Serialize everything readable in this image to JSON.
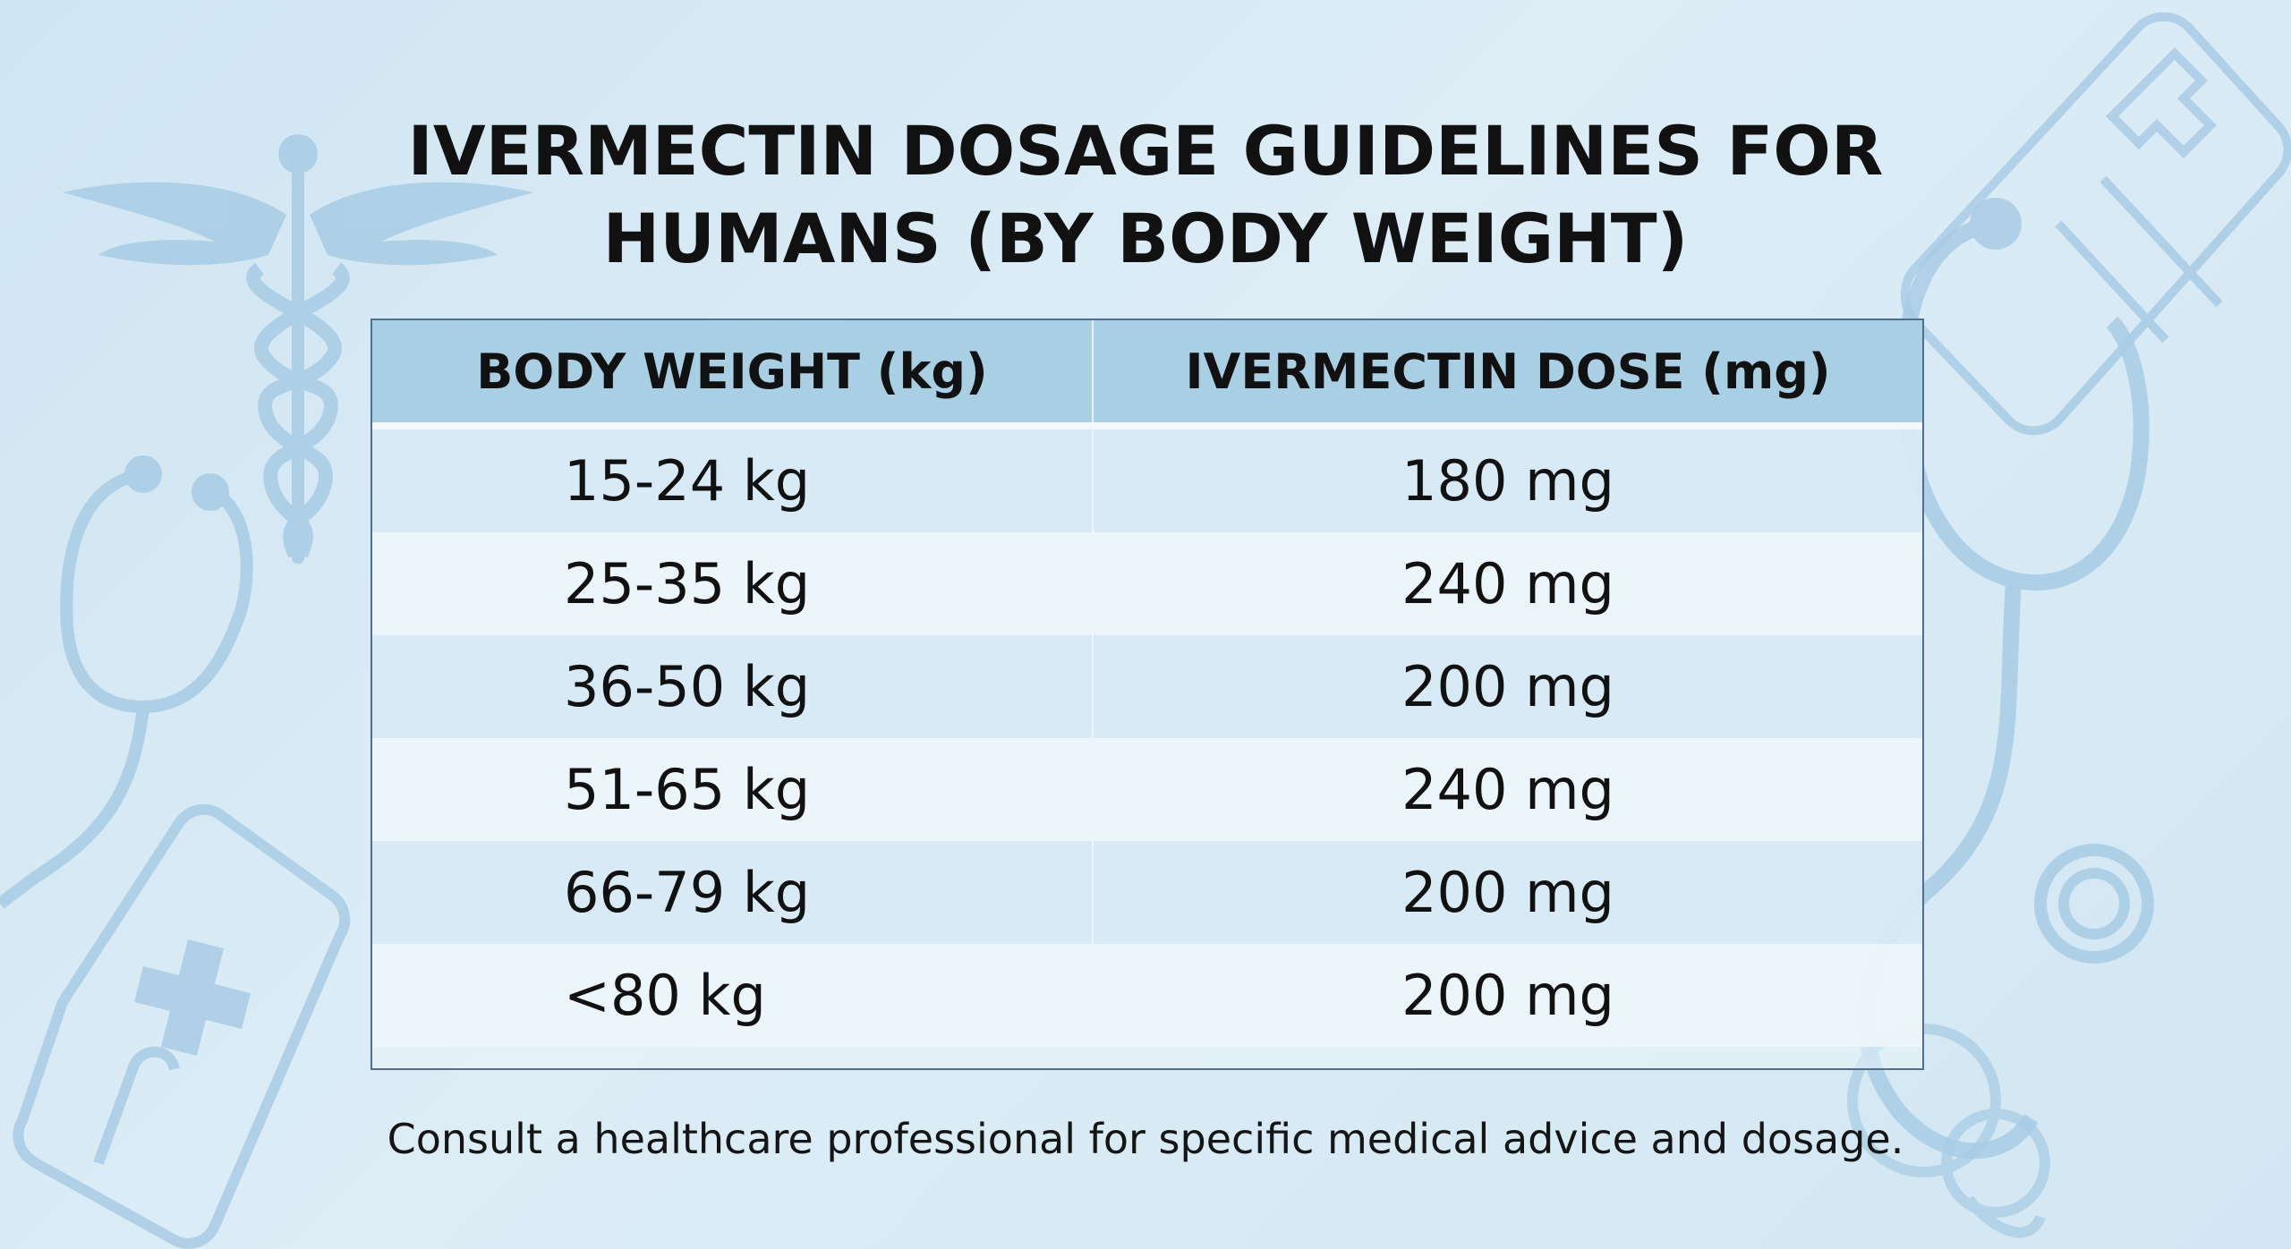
{
  "title_line1": "IVERMECTIN DOSAGE GUIDELINES FOR",
  "title_line2": "HUMANS (BY BODY WEIGHT)",
  "table": {
    "headers": [
      "BODY WEIGHT (kg)",
      "IVERMECTIN DOSE (mg)"
    ],
    "rows": [
      {
        "weight": "15-24 kg",
        "dose": "180 mg"
      },
      {
        "weight": "25-35 kg",
        "dose": "240 mg"
      },
      {
        "weight": "36-50 kg",
        "dose": "200 mg"
      },
      {
        "weight": "51-65 kg",
        "dose": "240 mg"
      },
      {
        "weight": "66-79 kg",
        "dose": "200 mg"
      },
      {
        "weight": "<80 kg",
        "dose": "200 mg"
      }
    ]
  },
  "footer": "Consult a healthcare professional for specific medical advice and dosage.",
  "colors": {
    "background": "#d6eaf5",
    "header_fill": "#a9cfe5",
    "decor_icon": "#9fc7e2",
    "table_border": "#4f6f8f"
  },
  "icons": [
    "caduceus-icon",
    "stethoscope-icon",
    "medical-kit-icon",
    "clipboard-icon",
    "pacifier-icon"
  ]
}
